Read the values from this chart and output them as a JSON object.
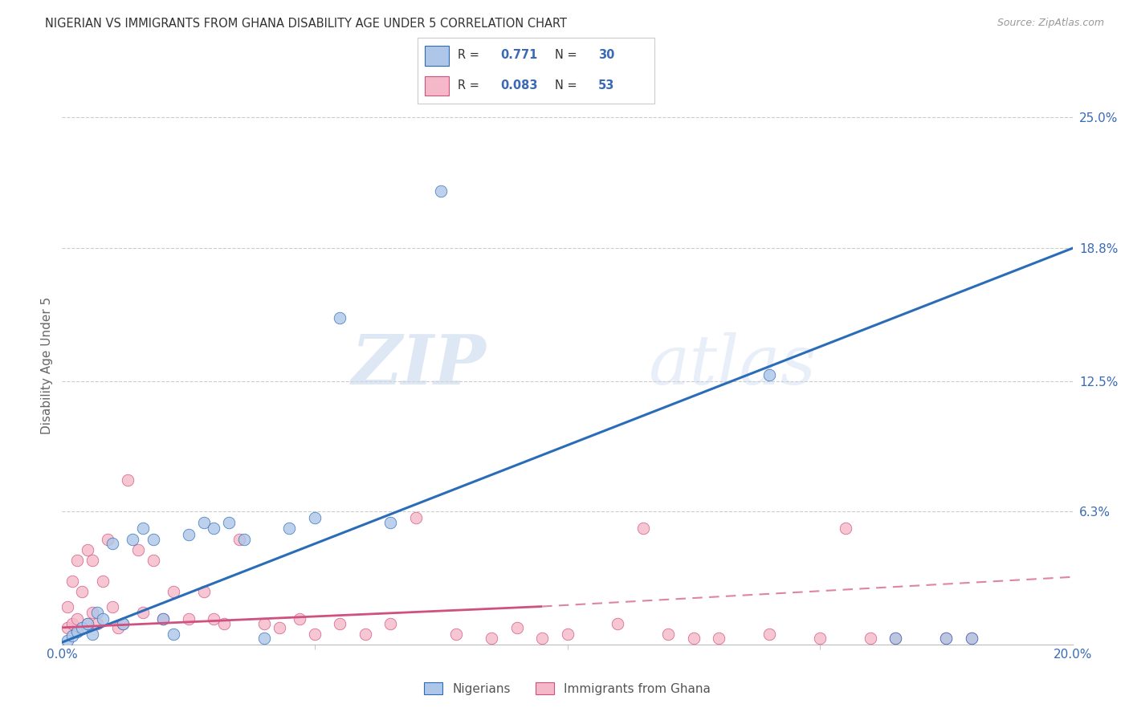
{
  "title": "NIGERIAN VS IMMIGRANTS FROM GHANA DISABILITY AGE UNDER 5 CORRELATION CHART",
  "source": "Source: ZipAtlas.com",
  "xlabel_start": "0.0%",
  "xlabel_end": "20.0%",
  "ylabel": "Disability Age Under 5",
  "ytick_labels": [
    "6.3%",
    "12.5%",
    "18.8%",
    "25.0%"
  ],
  "ytick_values": [
    0.063,
    0.125,
    0.188,
    0.25
  ],
  "xmin": 0.0,
  "xmax": 0.2,
  "ymin": 0.0,
  "ymax": 0.265,
  "legend1_R": "0.771",
  "legend1_N": "30",
  "legend2_R": "0.083",
  "legend2_N": "53",
  "legend_label1": "Nigerians",
  "legend_label2": "Immigrants from Ghana",
  "watermark_zip": "ZIP",
  "watermark_atlas": "atlas",
  "blue_color": "#aec6e8",
  "pink_color": "#f5b8c8",
  "blue_line_color": "#2b6cb8",
  "pink_line_color": "#d05080",
  "background_color": "#FFFFFF",
  "blue_trendline": [
    [
      0.0,
      0.001
    ],
    [
      0.2,
      0.188
    ]
  ],
  "pink_trendline_solid": [
    [
      0.0,
      0.008
    ],
    [
      0.095,
      0.018
    ]
  ],
  "pink_trendline_dashed": [
    [
      0.095,
      0.018
    ],
    [
      0.2,
      0.032
    ]
  ],
  "nigerians_x": [
    0.001,
    0.002,
    0.003,
    0.004,
    0.005,
    0.006,
    0.007,
    0.008,
    0.01,
    0.012,
    0.014,
    0.016,
    0.018,
    0.02,
    0.022,
    0.025,
    0.028,
    0.03,
    0.033,
    0.036,
    0.04,
    0.045,
    0.05,
    0.055,
    0.065,
    0.075,
    0.14,
    0.165,
    0.175,
    0.18
  ],
  "nigerians_y": [
    0.002,
    0.004,
    0.006,
    0.008,
    0.01,
    0.005,
    0.015,
    0.012,
    0.048,
    0.01,
    0.05,
    0.055,
    0.05,
    0.012,
    0.005,
    0.052,
    0.058,
    0.055,
    0.058,
    0.05,
    0.003,
    0.055,
    0.06,
    0.155,
    0.058,
    0.215,
    0.128,
    0.003,
    0.003,
    0.003
  ],
  "ghana_x": [
    0.001,
    0.001,
    0.002,
    0.002,
    0.003,
    0.003,
    0.004,
    0.005,
    0.005,
    0.006,
    0.006,
    0.007,
    0.008,
    0.009,
    0.01,
    0.011,
    0.012,
    0.013,
    0.015,
    0.016,
    0.018,
    0.02,
    0.022,
    0.025,
    0.028,
    0.03,
    0.032,
    0.035,
    0.04,
    0.043,
    0.047,
    0.05,
    0.055,
    0.06,
    0.065,
    0.07,
    0.078,
    0.085,
    0.09,
    0.095,
    0.1,
    0.11,
    0.115,
    0.12,
    0.125,
    0.13,
    0.14,
    0.15,
    0.155,
    0.16,
    0.165,
    0.175,
    0.18
  ],
  "ghana_y": [
    0.008,
    0.018,
    0.03,
    0.01,
    0.04,
    0.012,
    0.025,
    0.01,
    0.045,
    0.015,
    0.04,
    0.01,
    0.03,
    0.05,
    0.018,
    0.008,
    0.01,
    0.078,
    0.045,
    0.015,
    0.04,
    0.012,
    0.025,
    0.012,
    0.025,
    0.012,
    0.01,
    0.05,
    0.01,
    0.008,
    0.012,
    0.005,
    0.01,
    0.005,
    0.01,
    0.06,
    0.005,
    0.003,
    0.008,
    0.003,
    0.005,
    0.01,
    0.055,
    0.005,
    0.003,
    0.003,
    0.005,
    0.003,
    0.055,
    0.003,
    0.003,
    0.003,
    0.003
  ]
}
